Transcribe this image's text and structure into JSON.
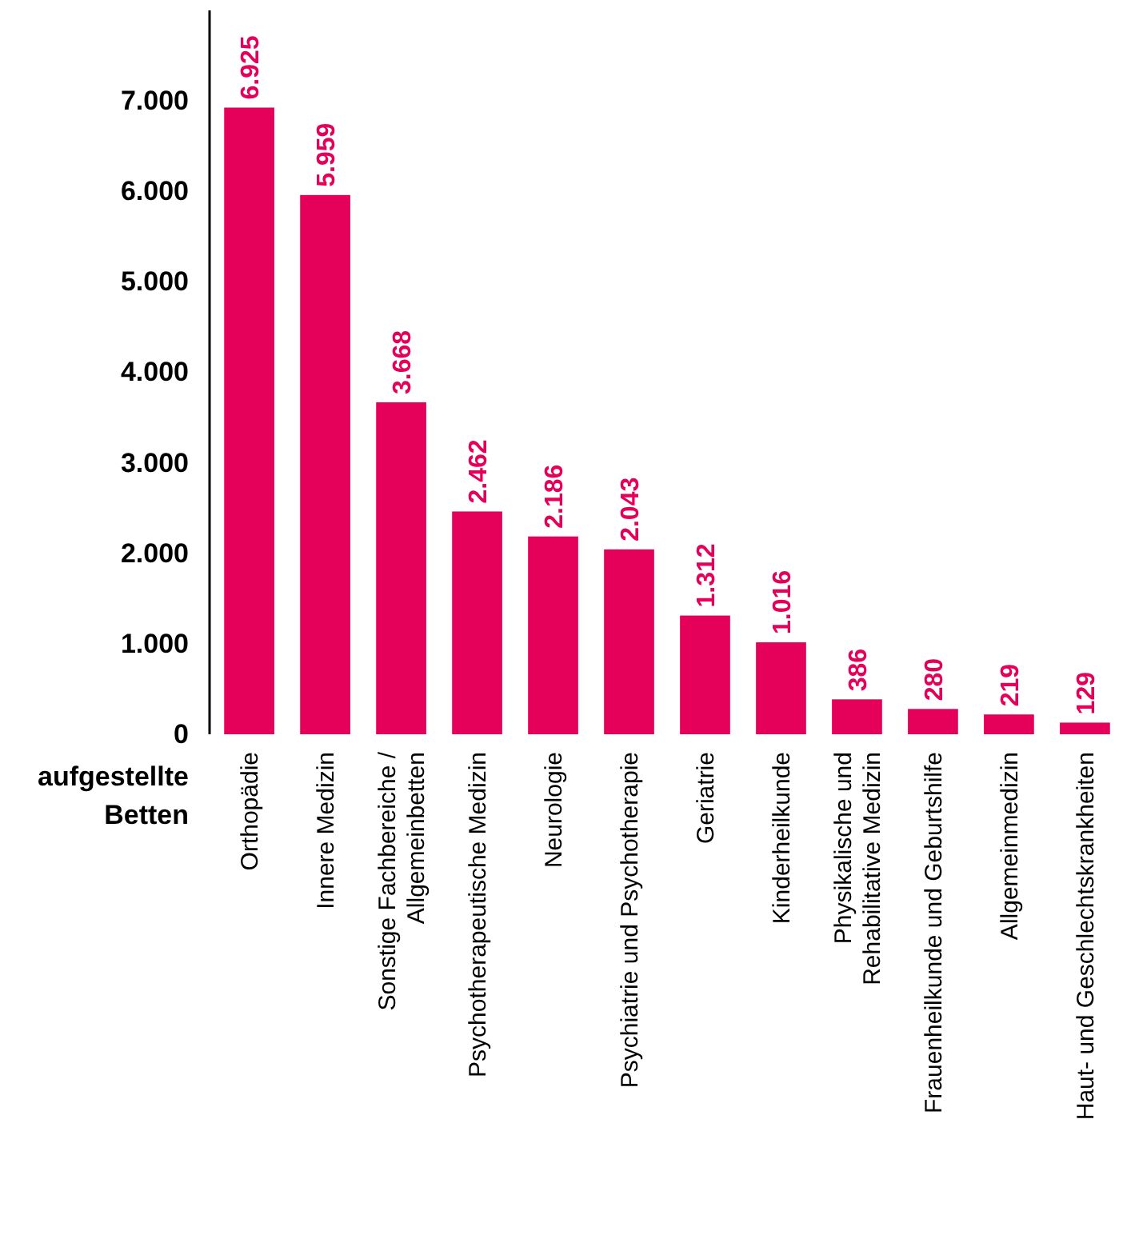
{
  "chart_data": {
    "type": "bar",
    "ylabel": "aufgestellte\nBetten",
    "categories": [
      "Orthopädie",
      "Innere Medizin",
      "Sonstige Fachbereiche /\nAllgemeinbetten",
      "Psychotherapeutische Medizin",
      "Neurologie",
      "Psychiatrie und Psychotherapie",
      "Geriatrie",
      "Kinderheilkunde",
      "Physikalische und\nRehabilitative Medizin",
      "Frauenheilkunde und Geburtshilfe",
      "Allgemeinmedizin",
      "Haut- und Geschlechtskrankheiten"
    ],
    "values": [
      6925,
      5959,
      3668,
      2462,
      2186,
      2043,
      1312,
      1016,
      386,
      280,
      219,
      129
    ],
    "value_labels": [
      "6.925",
      "5.959",
      "3.668",
      "2.462",
      "2.186",
      "2.043",
      "1.312",
      "1.016",
      "386",
      "280",
      "219",
      "129"
    ],
    "color": "#e5005a",
    "ylim": [
      0,
      8000
    ],
    "yticks": [
      {
        "value": 0,
        "label": "0"
      },
      {
        "value": 1000,
        "label": "1.000"
      },
      {
        "value": 2000,
        "label": "2.000"
      },
      {
        "value": 3000,
        "label": "3.000"
      },
      {
        "value": 4000,
        "label": "4.000"
      },
      {
        "value": 5000,
        "label": "5.000"
      },
      {
        "value": 6000,
        "label": "6.000"
      },
      {
        "value": 7000,
        "label": "7.000"
      }
    ],
    "grid": false
  }
}
